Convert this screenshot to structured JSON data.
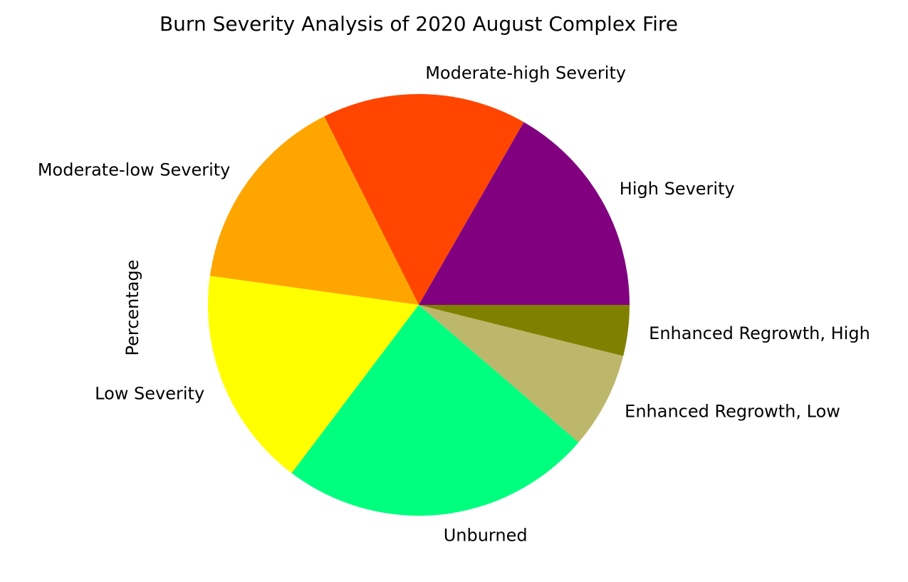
{
  "chart_data": {
    "type": "pie",
    "title": "Burn Severity Analysis of 2020 August Complex Fire",
    "ylabel": "Percentage",
    "start_angle_deg": 0,
    "direction": "counterclockwise",
    "slices": [
      {
        "label": "High Severity",
        "value": 16.7,
        "color": "#800080"
      },
      {
        "label": "Moderate-high Severity",
        "value": 15.7,
        "color": "#FF4500"
      },
      {
        "label": "Moderate-low Severity",
        "value": 15.4,
        "color": "#FFA500"
      },
      {
        "label": "Low Severity",
        "value": 16.9,
        "color": "#FFFF00"
      },
      {
        "label": "Unburned",
        "value": 24.0,
        "color": "#00FF7F"
      },
      {
        "label": "Enhanced Regrowth, Low",
        "value": 7.4,
        "color": "#BDB76B"
      },
      {
        "label": "Enhanced Regrowth, High",
        "value": 3.9,
        "color": "#808000"
      }
    ]
  }
}
